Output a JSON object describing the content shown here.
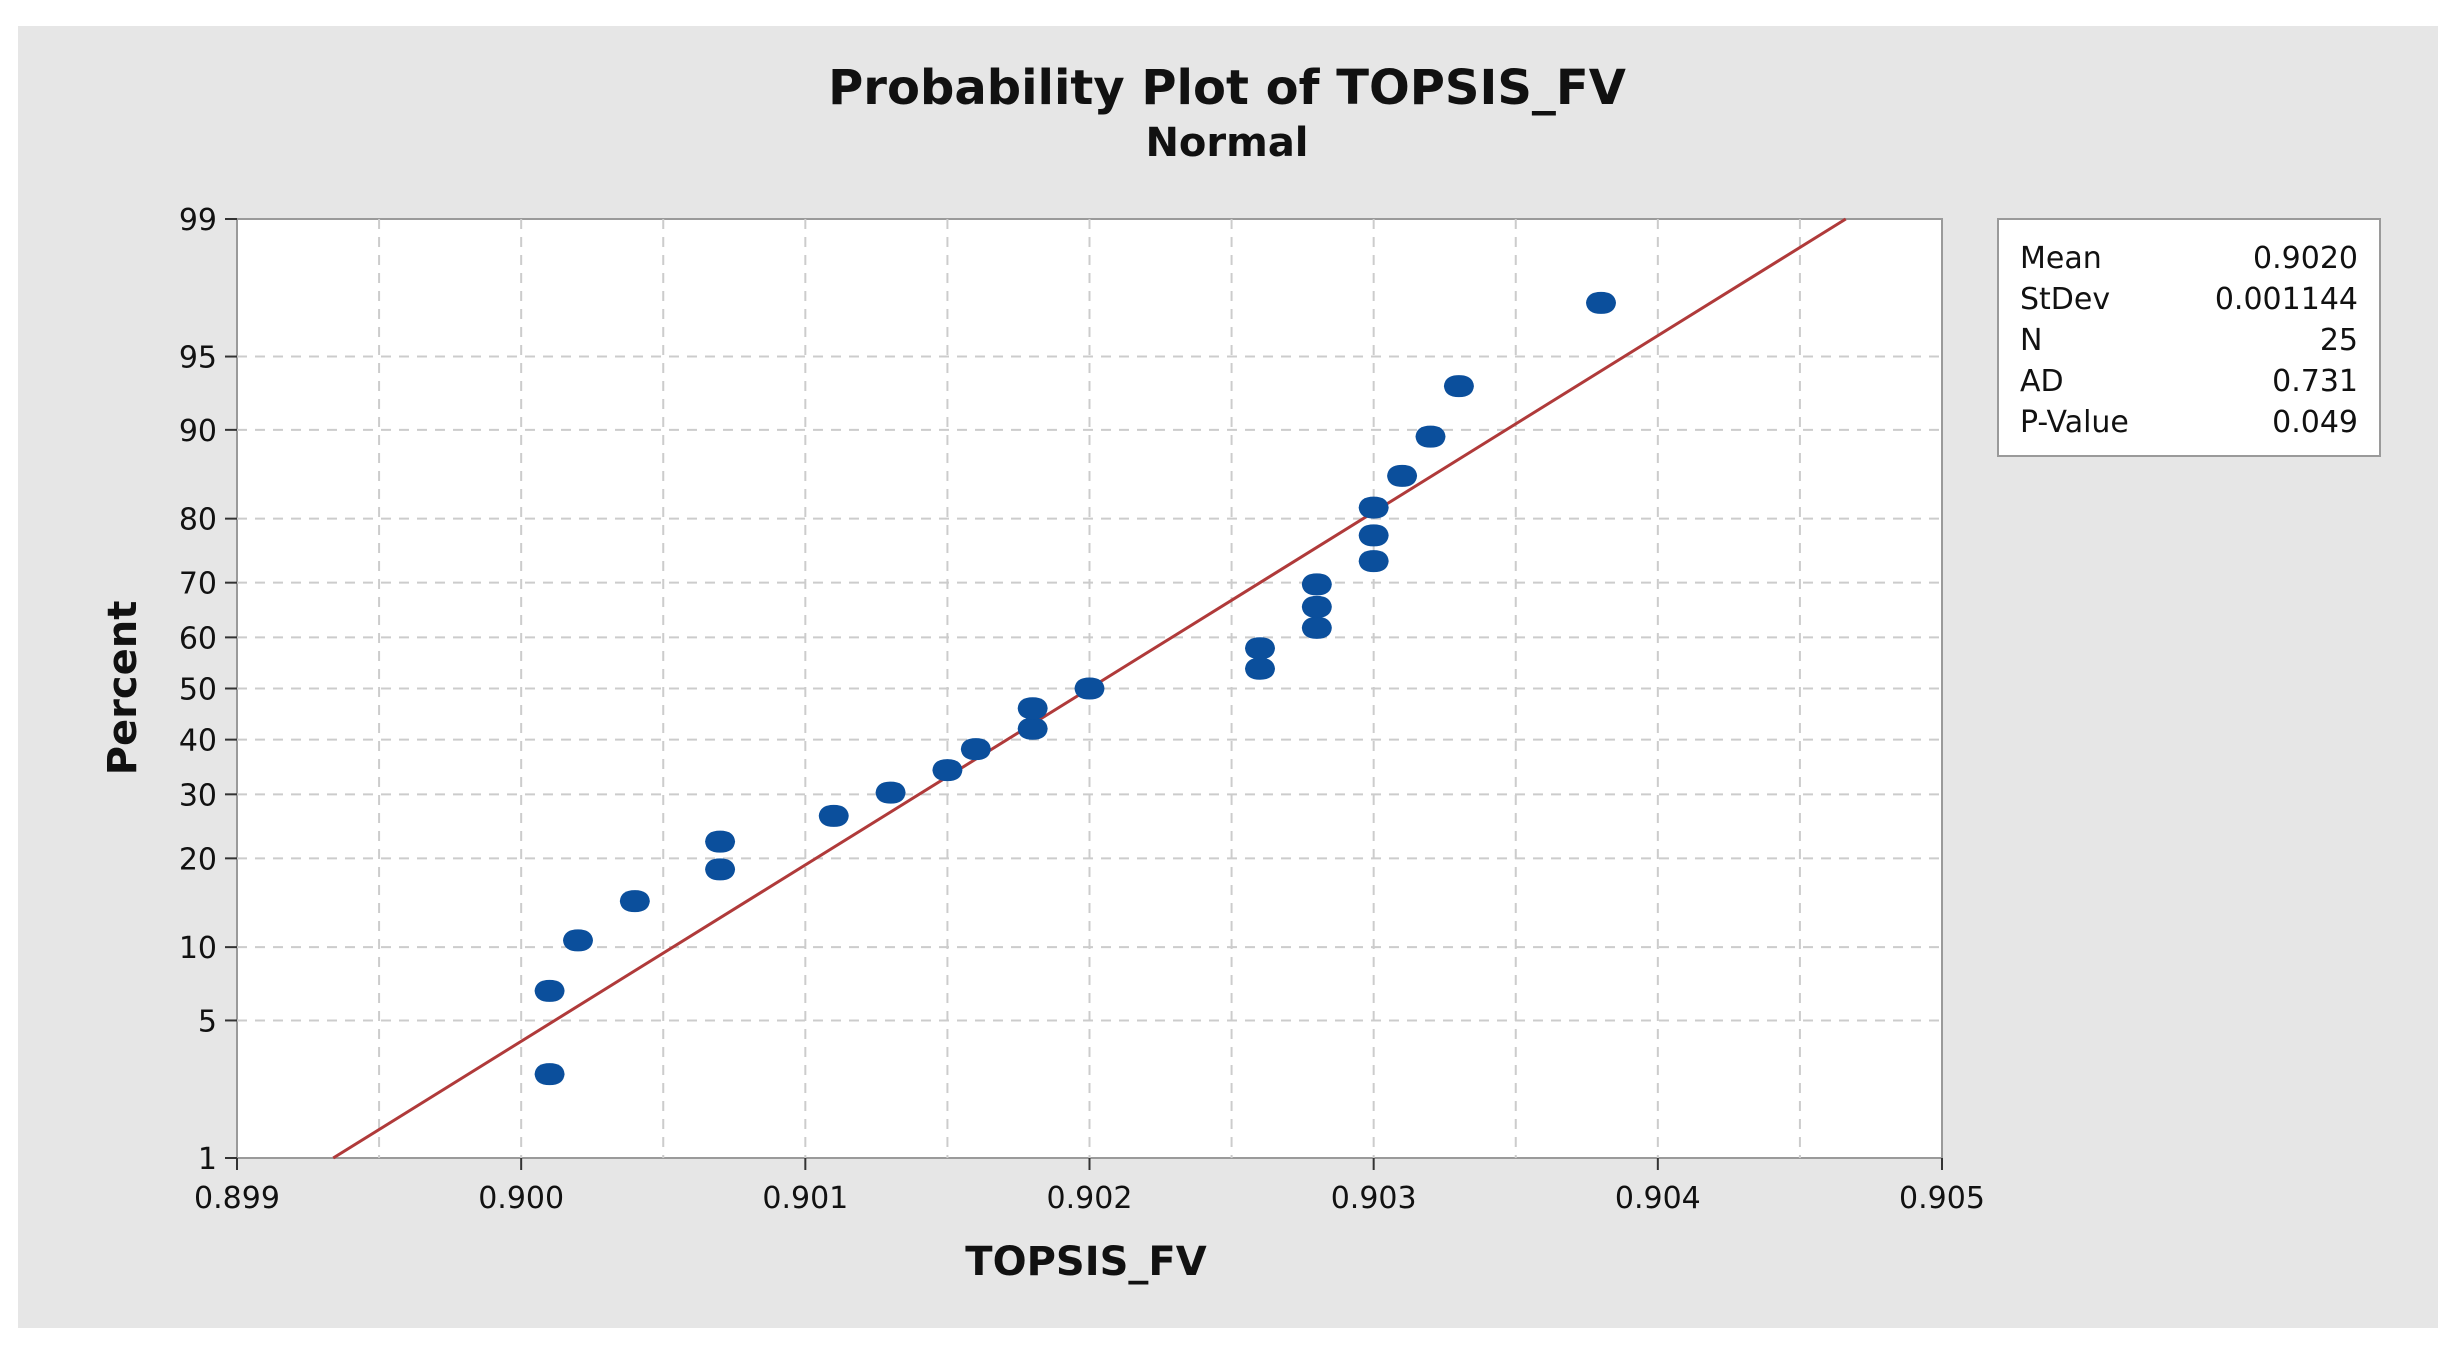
{
  "chart_data": {
    "type": "scatter",
    "title": "Probability Plot of TOPSIS_FV",
    "subtitle": "Normal",
    "xlabel": "TOPSIS_FV",
    "ylabel": "Percent",
    "xlim": [
      0.899,
      0.905
    ],
    "x_ticks": [
      {
        "value": 0.899,
        "label": "0.899"
      },
      {
        "value": 0.9,
        "label": "0.900"
      },
      {
        "value": 0.901,
        "label": "0.901"
      },
      {
        "value": 0.902,
        "label": "0.902"
      },
      {
        "value": 0.903,
        "label": "0.903"
      },
      {
        "value": 0.904,
        "label": "0.904"
      },
      {
        "value": 0.905,
        "label": "0.905"
      }
    ],
    "x_minor_grid": [
      0.8995,
      0.9005,
      0.9015,
      0.9025,
      0.9035,
      0.9045
    ],
    "y_scale": "normal-probability",
    "ylim": [
      1,
      99
    ],
    "y_ticks": [
      {
        "value": 1,
        "label": "1"
      },
      {
        "value": 5,
        "label": "5"
      },
      {
        "value": 10,
        "label": "10"
      },
      {
        "value": 20,
        "label": "20"
      },
      {
        "value": 30,
        "label": "30"
      },
      {
        "value": 40,
        "label": "40"
      },
      {
        "value": 50,
        "label": "50"
      },
      {
        "value": 60,
        "label": "60"
      },
      {
        "value": 70,
        "label": "70"
      },
      {
        "value": 80,
        "label": "80"
      },
      {
        "value": 90,
        "label": "90"
      },
      {
        "value": 95,
        "label": "95"
      },
      {
        "value": 99,
        "label": "99"
      }
    ],
    "grid": true,
    "legend_position": "top-right",
    "fit_line": {
      "mean": 0.902,
      "stdev": 0.001144,
      "color": "#b03a3a"
    },
    "point_color": "#0b4f9c",
    "points": [
      {
        "x": 0.9001,
        "y": 2.8
      },
      {
        "x": 0.9001,
        "y": 6.7
      },
      {
        "x": 0.9002,
        "y": 10.6
      },
      {
        "x": 0.9004,
        "y": 14.6
      },
      {
        "x": 0.9007,
        "y": 18.5
      },
      {
        "x": 0.9007,
        "y": 22.4
      },
      {
        "x": 0.9011,
        "y": 26.4
      },
      {
        "x": 0.9013,
        "y": 30.3
      },
      {
        "x": 0.9015,
        "y": 34.3
      },
      {
        "x": 0.9016,
        "y": 38.2
      },
      {
        "x": 0.9018,
        "y": 42.1
      },
      {
        "x": 0.9018,
        "y": 46.1
      },
      {
        "x": 0.902,
        "y": 50.0
      },
      {
        "x": 0.9026,
        "y": 53.9
      },
      {
        "x": 0.9026,
        "y": 57.9
      },
      {
        "x": 0.9028,
        "y": 61.8
      },
      {
        "x": 0.9028,
        "y": 65.7
      },
      {
        "x": 0.9028,
        "y": 69.7
      },
      {
        "x": 0.903,
        "y": 73.6
      },
      {
        "x": 0.903,
        "y": 77.6
      },
      {
        "x": 0.903,
        "y": 81.5
      },
      {
        "x": 0.9031,
        "y": 85.4
      },
      {
        "x": 0.9032,
        "y": 89.4
      },
      {
        "x": 0.9033,
        "y": 93.3
      },
      {
        "x": 0.9038,
        "y": 97.2
      }
    ],
    "stats": [
      {
        "label": "Mean",
        "value": "0.9020"
      },
      {
        "label": "StDev",
        "value": "0.001144"
      },
      {
        "label": "N",
        "value": "25"
      },
      {
        "label": "AD",
        "value": "0.731"
      },
      {
        "label": "P-Value",
        "value": "0.049"
      }
    ]
  }
}
